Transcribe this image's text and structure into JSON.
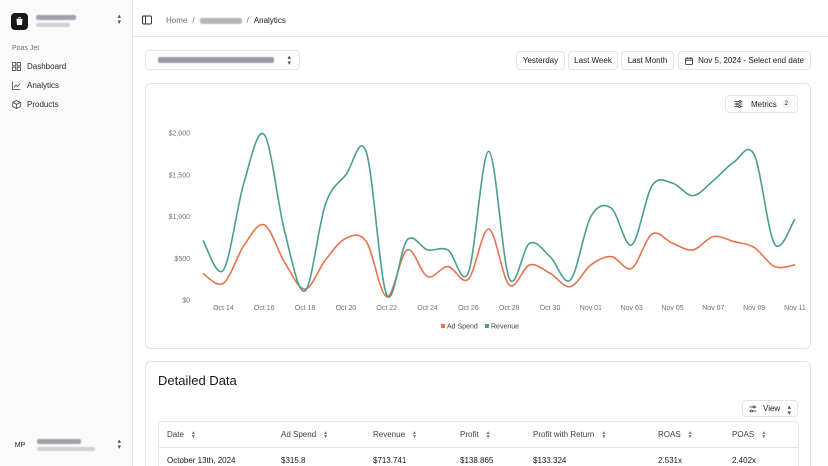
{
  "sidebar": {
    "group_label": "Poas Jet",
    "items": [
      {
        "label": "Dashboard",
        "icon": "dashboard-icon"
      },
      {
        "label": "Analytics",
        "icon": "chart-icon"
      },
      {
        "label": "Products",
        "icon": "package-icon"
      }
    ],
    "user_initials": "MP"
  },
  "breadcrumb": {
    "home": "Home",
    "current": "Analytics"
  },
  "toolbar": {
    "yesterday": "Yesterday",
    "last_week": "Last Week",
    "last_month": "Last Month",
    "date_range": "Nov 5, 2024 - Select end date"
  },
  "chart_card": {
    "metrics_label": "Metrics",
    "metrics_count": "2"
  },
  "chart_data": {
    "type": "line",
    "x_tick_labels": [
      "Oct 14",
      "Oct 16",
      "Oct 18",
      "Oct 20",
      "Oct 22",
      "Oct 24",
      "Oct 26",
      "Oct 28",
      "Oct 30",
      "Nov 01",
      "Nov 03",
      "Nov 05",
      "Nov 07",
      "Nov 09",
      "Nov 11"
    ],
    "y_tick_labels": [
      "$0",
      "$500",
      "$1,000",
      "$1,500",
      "$2,000"
    ],
    "ylim": [
      0,
      2000
    ],
    "x": [
      "Oct 13",
      "Oct 14",
      "Oct 15",
      "Oct 16",
      "Oct 17",
      "Oct 18",
      "Oct 19",
      "Oct 20",
      "Oct 21",
      "Oct 22",
      "Oct 23",
      "Oct 24",
      "Oct 25",
      "Oct 26",
      "Oct 27",
      "Oct 28",
      "Oct 29",
      "Oct 30",
      "Oct 31",
      "Nov 01",
      "Nov 02",
      "Nov 03",
      "Nov 04",
      "Nov 05",
      "Nov 06",
      "Nov 07",
      "Nov 08",
      "Nov 09",
      "Nov 10",
      "Nov 11"
    ],
    "series": [
      {
        "name": "Ad Spend",
        "color": "#e8734f",
        "values": [
          316,
          200,
          650,
          900,
          450,
          130,
          480,
          740,
          700,
          40,
          600,
          280,
          400,
          250,
          850,
          180,
          420,
          320,
          160,
          420,
          520,
          380,
          790,
          680,
          600,
          760,
          700,
          630,
          400,
          420
        ]
      },
      {
        "name": "Revenue",
        "color": "#4a9e8e",
        "values": [
          714,
          360,
          1400,
          1980,
          820,
          110,
          1150,
          1500,
          1770,
          60,
          720,
          600,
          600,
          330,
          1780,
          260,
          680,
          520,
          240,
          1000,
          1100,
          660,
          1370,
          1400,
          1250,
          1430,
          1650,
          1740,
          670,
          970
        ]
      }
    ],
    "legend": "bottom-center"
  },
  "detail": {
    "title": "Detailed Data",
    "view_label": "View",
    "columns": [
      "Date",
      "Ad Spend",
      "Revenue",
      "Profit",
      "Profit with Return",
      "ROAS",
      "POAS"
    ],
    "rows": [
      [
        "October 13th, 2024",
        "$315.8",
        "$713.741",
        "$138.865",
        "$133.324",
        "2.531x",
        "2.402x"
      ]
    ]
  }
}
